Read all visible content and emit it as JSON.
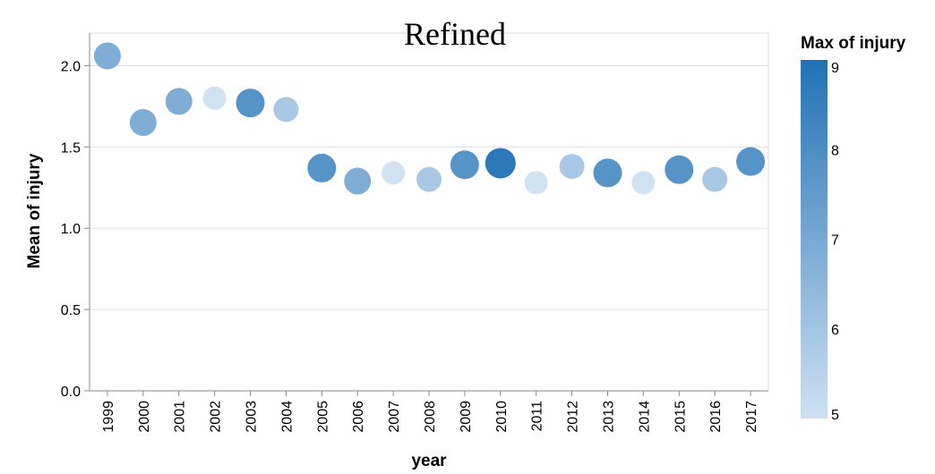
{
  "chart_data": {
    "type": "scatter",
    "title": "Refined",
    "xlabel": "year",
    "ylabel": "Mean of injury",
    "ylim": [
      0,
      2.2
    ],
    "yticks": [
      "0.0",
      "0.5",
      "1.0",
      "1.5",
      "2.0"
    ],
    "grid": true,
    "categories": [
      "1999",
      "2000",
      "2001",
      "2002",
      "2003",
      "2004",
      "2005",
      "2006",
      "2007",
      "2008",
      "2009",
      "2010",
      "2011",
      "2012",
      "2013",
      "2014",
      "2015",
      "2016",
      "2017"
    ],
    "values": [
      2.06,
      1.65,
      1.78,
      1.8,
      1.77,
      1.73,
      1.37,
      1.29,
      1.34,
      1.3,
      1.39,
      1.4,
      1.28,
      1.38,
      1.34,
      1.28,
      1.36,
      1.3,
      1.41
    ],
    "max_injury": [
      7,
      7,
      7,
      5,
      8,
      6,
      8,
      7,
      5,
      6,
      8,
      9,
      5,
      6,
      8,
      5,
      8,
      6,
      8
    ],
    "legend": {
      "title": "Max of injury",
      "placement": "right",
      "min": 5,
      "max": 9,
      "ticks": [
        "5",
        "6",
        "7",
        "8",
        "9"
      ],
      "color_low": "#cfe1f2",
      "color_high": "#2171b5"
    }
  }
}
